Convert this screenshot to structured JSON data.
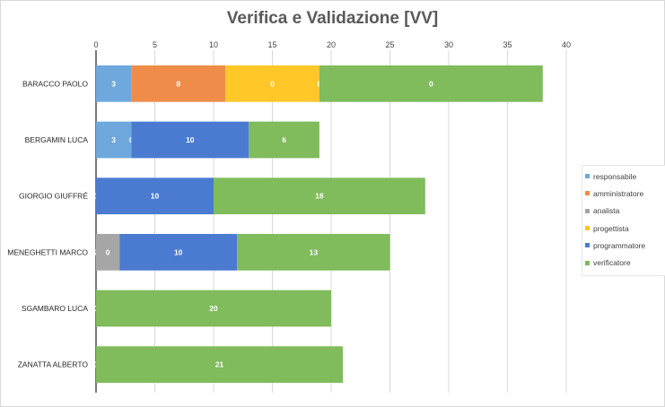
{
  "chart_data": {
    "type": "bar",
    "orientation": "horizontal",
    "stacked": true,
    "title": "Verifica e Validazione [VV]",
    "xlim": [
      0,
      40
    ],
    "xticks": [
      0,
      5,
      10,
      15,
      20,
      25,
      30,
      35,
      40
    ],
    "grid": true,
    "legend_position": "right",
    "categories": [
      "BARACCO PAOLO",
      "BERGAMIN LUCA",
      "GIORGIO GIUFFRÉ",
      "MENEGHETTI MARCO",
      "SGAMBARO LUCA",
      "ZANATTA ALBERTO"
    ],
    "series": [
      {
        "name": "responsabile",
        "color": "#6fa8dc",
        "values": [
          3,
          3,
          0,
          0,
          0,
          0
        ]
      },
      {
        "name": "amministratore",
        "color": "#f08c4a",
        "values": [
          8,
          0,
          null,
          null,
          null,
          null
        ]
      },
      {
        "name": "analista",
        "color": "#a6a6a6",
        "values": [
          null,
          null,
          null,
          2,
          null,
          null
        ]
      },
      {
        "name": "progettista",
        "color": "#ffc728",
        "values": [
          8,
          null,
          null,
          null,
          null,
          null
        ]
      },
      {
        "name": "programmatore",
        "color": "#4a7bd0",
        "values": [
          0,
          10,
          10,
          10,
          null,
          null
        ]
      },
      {
        "name": "verificatore",
        "color": "#80bb5c",
        "values": [
          19,
          6,
          18,
          13,
          20,
          21
        ]
      }
    ],
    "labels": [
      [
        "3",
        "8",
        "0",
        "8",
        "0",
        "19"
      ],
      [
        "3",
        "0",
        "10",
        "6"
      ],
      [
        "0",
        "10",
        "18"
      ],
      [
        "2",
        "0",
        "10",
        "13"
      ],
      [
        "0",
        "20"
      ],
      [
        "0",
        "21"
      ]
    ]
  }
}
